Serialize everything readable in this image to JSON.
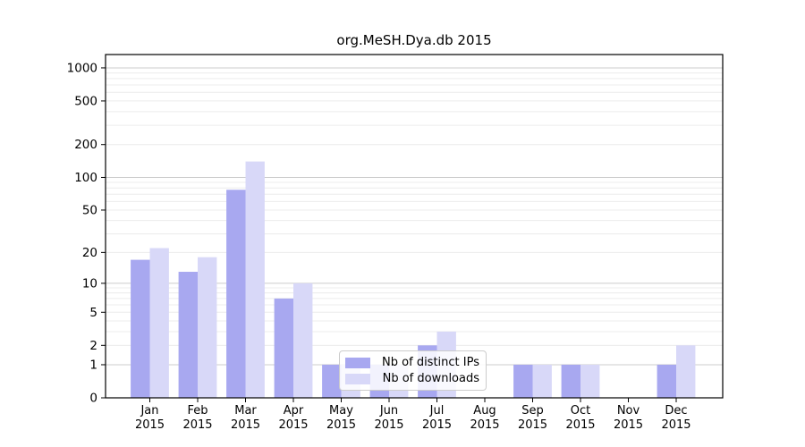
{
  "chart_data": {
    "type": "bar",
    "title": "org.MeSH.Dya.db 2015",
    "categories": [
      "Jan",
      "Feb",
      "Mar",
      "Apr",
      "May",
      "Jun",
      "Jul",
      "Aug",
      "Sep",
      "Oct",
      "Nov",
      "Dec"
    ],
    "year_label": "2015",
    "series": [
      {
        "name": "Nb of distinct IPs",
        "color": "#a8a8f0",
        "values": [
          17,
          13,
          77,
          7,
          1,
          1,
          2,
          0,
          1,
          1,
          0,
          1
        ]
      },
      {
        "name": "Nb of downloads",
        "color": "#d8d8f8",
        "values": [
          22,
          18,
          140,
          10,
          1,
          1,
          3,
          0,
          1,
          1,
          0,
          2
        ]
      }
    ],
    "xlabel": "",
    "ylabel": "",
    "y_scale": "log10(1+v)",
    "y_ticks": [
      0,
      1,
      2,
      5,
      10,
      20,
      50,
      100,
      200,
      500,
      1000
    ],
    "ylim": [
      0,
      1320
    ],
    "grid": true,
    "grid_major_values": [
      1,
      10,
      100,
      1000
    ],
    "legend_position": "inside lower center-left",
    "colors": {
      "grid_major": "#cccccc",
      "grid_minor": "#ececec",
      "spine": "#000000",
      "tick_text": "#000000",
      "legend_border": "#cccccc"
    }
  }
}
